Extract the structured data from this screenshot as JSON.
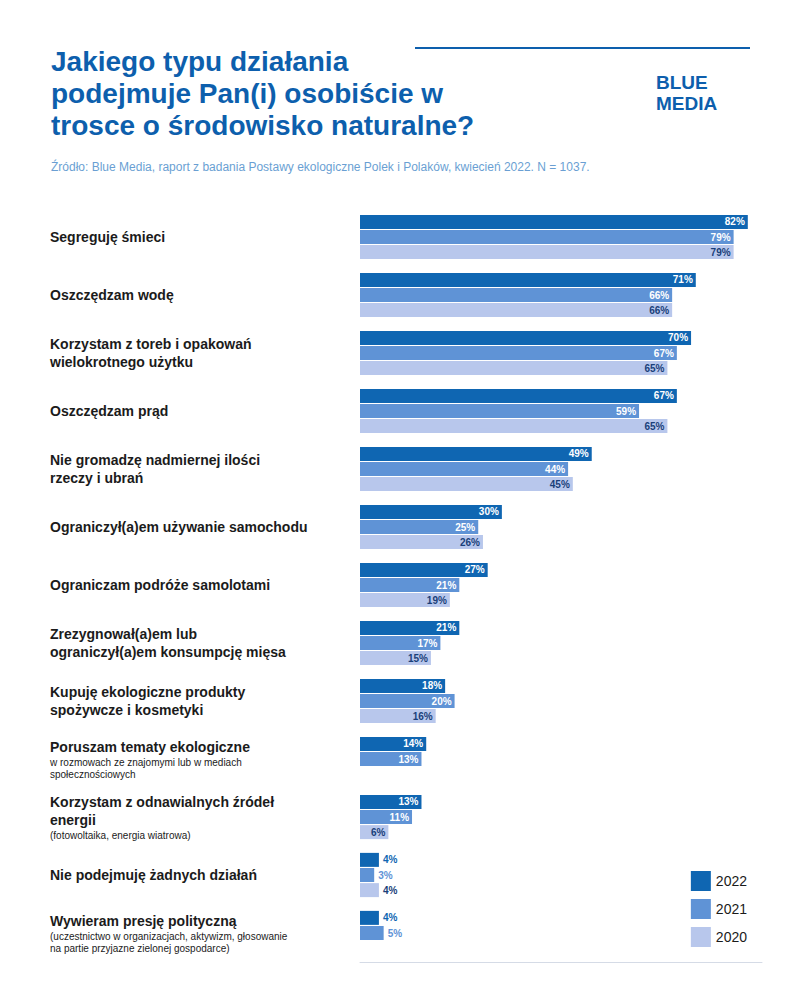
{
  "chart_data": {
    "type": "bar",
    "orientation": "horizontal",
    "title": "Jakiego typu działania podejmuje Pan(i) osobiście w trosce o środowisko naturalne?",
    "subtitle": "Źródło: Blue Media, raport z badania Postawy ekologiczne Polek i Polaków, kwiecień 2022. N = 1037.",
    "brand": "BLUE MEDIA",
    "categories": [
      "Segreguję śmieci",
      "Oszczędzam wodę",
      "Korzystam z toreb i opakowań wielokrotnego użytku",
      "Oszczędzam prąd",
      "Nie gromadzę nadmiernej ilości rzeczy i ubrań",
      "Ograniczył(a)em używanie samochodu",
      "Ograniczam podróże samolotami",
      "Zrezygnował(a)em lub ograniczył(a)em konsumpcję mięsa",
      "Kupuję ekologiczne produkty spożywcze i kosmetyki",
      "Poruszam tematy ekologiczne",
      "Korzystam z odnawialnych źródeł energii",
      "Nie podejmuję żadnych działań",
      "Wywieram presję polityczną"
    ],
    "category_notes": [
      null,
      null,
      null,
      null,
      null,
      null,
      null,
      null,
      null,
      "w rozmowach ze znajomymi lub w mediach społecznościowych",
      "(fotowoltaika, energia wiatrowa)",
      null,
      "(uczestnictwo w organizacjach, aktywizm, głosowanie na partie przyjazne zielonej gospodarce)"
    ],
    "series": [
      {
        "name": "2022",
        "color": "#0f66b2",
        "values": [
          82,
          71,
          70,
          67,
          49,
          30,
          27,
          21,
          18,
          14,
          13,
          4,
          4
        ],
        "value_labels": [
          "82%",
          "71%",
          "70%",
          "67%",
          "49%",
          "30%",
          "27%",
          "21%",
          "18%",
          "14%",
          "13%",
          "4%",
          "4%"
        ]
      },
      {
        "name": "2021",
        "color": "#5f93d6",
        "values": [
          79,
          66,
          67,
          59,
          44,
          25,
          21,
          17,
          20,
          13,
          11,
          3,
          5
        ],
        "value_labels": [
          "79%",
          "66%",
          "67%",
          "59%",
          "44%",
          "25%",
          "21%",
          "17%",
          "20%",
          "13%",
          "11%",
          "3%",
          "5%"
        ]
      },
      {
        "name": "2020",
        "color": "#b8c7ec",
        "values": [
          79,
          66,
          65,
          65,
          45,
          26,
          19,
          15,
          16,
          null,
          6,
          4,
          null
        ],
        "value_labels": [
          "79%",
          "66%",
          "65%",
          "65%",
          "45%",
          "26%",
          "19%",
          "15%",
          "16%",
          null,
          "6%",
          "4%",
          null
        ]
      }
    ],
    "xlim": [
      0,
      85
    ],
    "grid": false,
    "tick_labels": false,
    "data_labels": true,
    "legend": "bottom-right"
  }
}
